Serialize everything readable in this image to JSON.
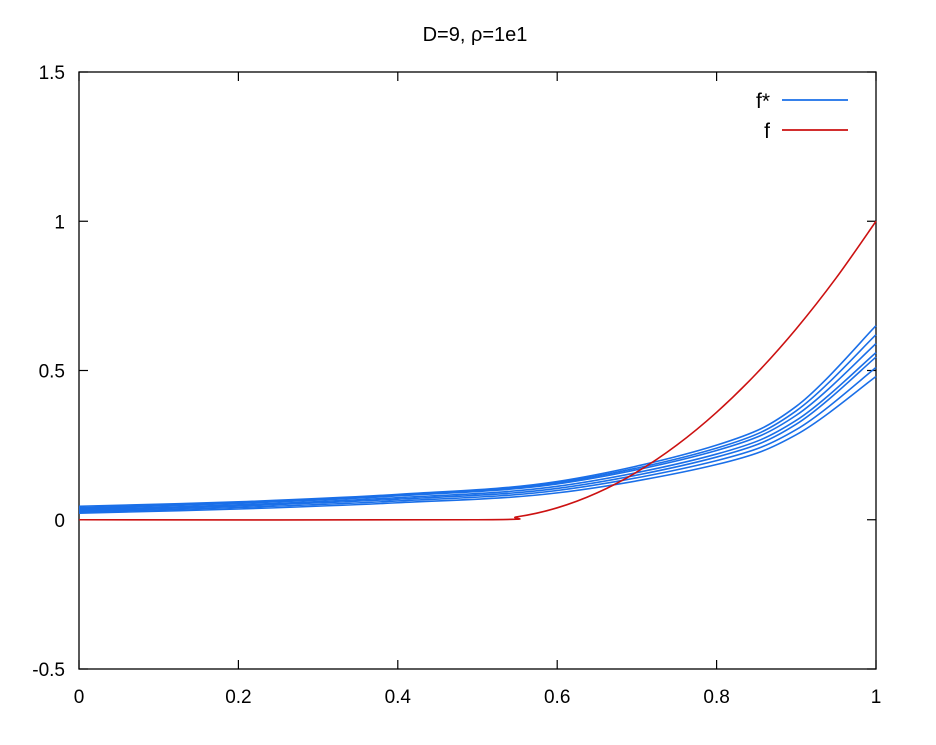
{
  "chart_data": {
    "type": "line",
    "title": "D=9, ρ=1e1",
    "xlabel": "",
    "ylabel": "",
    "xlim": [
      0,
      1
    ],
    "ylim": [
      -0.5,
      1.5
    ],
    "x_ticks": [
      "0",
      "0.2",
      "0.4",
      "0.6",
      "0.8",
      "1"
    ],
    "y_ticks": [
      "-0.5",
      "0",
      "0.5",
      "1",
      "1.5"
    ],
    "grid": false,
    "legend_position": "top-right",
    "colors": {
      "f_star": "#1a6fe8",
      "f": "#cc1111"
    },
    "series": [
      {
        "name": "f*",
        "group": "f_star",
        "members": [
          {
            "x": [
              0,
              0.2,
              0.4,
              0.6,
              0.8,
              0.9,
              1.0
            ],
            "y": [
              0.045,
              0.06,
              0.085,
              0.128,
              0.25,
              0.38,
              0.65
            ]
          },
          {
            "x": [
              0,
              0.2,
              0.4,
              0.6,
              0.8,
              0.9,
              1.0
            ],
            "y": [
              0.04,
              0.057,
              0.082,
              0.124,
              0.24,
              0.365,
              0.62
            ]
          },
          {
            "x": [
              0,
              0.2,
              0.4,
              0.6,
              0.8,
              0.9,
              1.0
            ],
            "y": [
              0.038,
              0.055,
              0.08,
              0.12,
              0.232,
              0.35,
              0.59
            ]
          },
          {
            "x": [
              0,
              0.2,
              0.4,
              0.6,
              0.8,
              0.9,
              1.0
            ],
            "y": [
              0.034,
              0.05,
              0.074,
              0.112,
              0.22,
              0.333,
              0.56
            ]
          },
          {
            "x": [
              0,
              0.2,
              0.4,
              0.6,
              0.8,
              0.9,
              1.0
            ],
            "y": [
              0.03,
              0.046,
              0.069,
              0.105,
              0.21,
              0.32,
              0.545
            ]
          },
          {
            "x": [
              0,
              0.2,
              0.4,
              0.6,
              0.8,
              0.9,
              1.0
            ],
            "y": [
              0.026,
              0.041,
              0.063,
              0.098,
              0.198,
              0.302,
              0.51
            ]
          },
          {
            "x": [
              0,
              0.2,
              0.4,
              0.6,
              0.8,
              0.9,
              1.0
            ],
            "y": [
              0.022,
              0.036,
              0.057,
              0.09,
              0.185,
              0.285,
              0.48
            ]
          }
        ]
      },
      {
        "name": "f",
        "group": "f",
        "members": [
          {
            "x": [
              0,
              0.5,
              0.55,
              0.6,
              0.65,
              0.7,
              0.75,
              0.8,
              0.85,
              0.9,
              0.95,
              1.0
            ],
            "y": [
              0,
              0,
              0.01,
              0.04,
              0.09,
              0.16,
              0.25,
              0.36,
              0.49,
              0.64,
              0.81,
              1.0
            ]
          }
        ]
      }
    ]
  }
}
